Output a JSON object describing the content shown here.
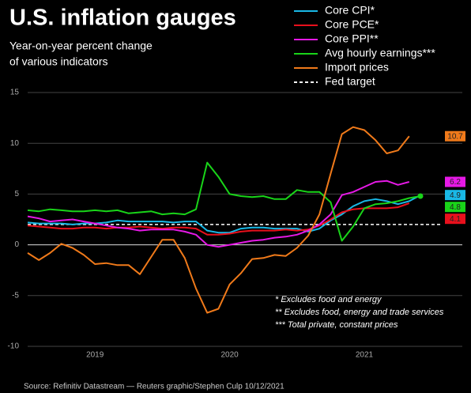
{
  "chart_data": {
    "type": "line",
    "title": "U.S. inflation gauges",
    "subtitle": [
      "Year-on-year percent change",
      "of various indicators"
    ],
    "categories": [
      null,
      null,
      null,
      null,
      null,
      null,
      "2019",
      null,
      null,
      null,
      null,
      null,
      null,
      null,
      null,
      null,
      null,
      null,
      "2020",
      null,
      null,
      null,
      null,
      null,
      null,
      null,
      null,
      null,
      null,
      null,
      "2021",
      null,
      null,
      null,
      null,
      null
    ],
    "series": [
      {
        "name": "Core CPI*",
        "color": "#19b8e6",
        "values": [
          2.2,
          2.1,
          2.1,
          2.1,
          2.0,
          2.1,
          2.1,
          2.2,
          2.4,
          2.3,
          2.3,
          2.3,
          2.3,
          2.2,
          2.3,
          2.3,
          1.4,
          1.2,
          1.2,
          1.6,
          1.7,
          1.7,
          1.6,
          1.6,
          1.6,
          1.3,
          1.6,
          2.4,
          3.0,
          3.8,
          4.3,
          4.5,
          4.3,
          4.0,
          4.3,
          4.9
        ]
      },
      {
        "name": "Core PCE*",
        "color": "#e8101c",
        "values": [
          1.9,
          1.8,
          1.7,
          1.6,
          1.6,
          1.7,
          1.7,
          1.6,
          1.7,
          1.7,
          1.8,
          1.7,
          1.6,
          1.7,
          1.7,
          1.6,
          1.0,
          1.0,
          1.1,
          1.3,
          1.4,
          1.4,
          1.4,
          1.5,
          1.4,
          1.5,
          1.9,
          2.5,
          3.2,
          3.5,
          3.6,
          3.6,
          3.6,
          3.7,
          4.1,
          null
        ]
      },
      {
        "name": "Core PPI**",
        "color": "#e619e6",
        "values": [
          2.8,
          2.6,
          2.3,
          2.4,
          2.5,
          2.3,
          2.1,
          1.9,
          1.7,
          1.6,
          1.4,
          1.5,
          1.5,
          1.5,
          1.3,
          1.0,
          0.0,
          -0.2,
          0.0,
          0.2,
          0.4,
          0.5,
          0.7,
          0.8,
          1.0,
          1.4,
          2.0,
          3.0,
          4.9,
          5.2,
          5.7,
          6.2,
          6.3,
          5.9,
          6.2,
          null
        ]
      },
      {
        "name": "Avg hourly earnings***",
        "color": "#19d419",
        "values": [
          3.4,
          3.3,
          3.5,
          3.4,
          3.3,
          3.3,
          3.4,
          3.3,
          3.4,
          3.1,
          3.2,
          3.3,
          3.0,
          3.1,
          3.0,
          3.5,
          8.1,
          6.7,
          5.0,
          4.8,
          4.7,
          4.8,
          4.5,
          4.5,
          5.4,
          5.2,
          5.2,
          4.2,
          0.4,
          1.8,
          3.6,
          4.0,
          4.1,
          4.3,
          4.6,
          4.8
        ]
      },
      {
        "name": "Import prices",
        "color": "#f07a1a",
        "values": [
          -0.8,
          -1.5,
          -0.8,
          0.1,
          -0.3,
          -1.0,
          -1.9,
          -1.8,
          -2.0,
          -2.0,
          -2.9,
          -1.2,
          0.5,
          0.5,
          -1.3,
          -4.3,
          -6.7,
          -6.3,
          -3.9,
          -2.8,
          -1.4,
          -1.3,
          -1.0,
          -1.1,
          -0.3,
          0.9,
          3.0,
          7.0,
          10.9,
          11.6,
          11.3,
          10.3,
          9.0,
          9.3,
          10.7,
          null
        ]
      }
    ],
    "fed_target": {
      "name": "Fed target",
      "value": 2,
      "color": "#ffffff"
    },
    "ylim": [
      -10,
      15
    ],
    "yticks": [
      -10,
      -5,
      0,
      5,
      10,
      15
    ],
    "grid": true,
    "annotations": [
      "* Excludes food and energy",
      "** Excludes food, energy and trade services",
      "*** Total private, constant prices"
    ],
    "source": "Source: Refinitiv Datastream — Reuters graphic/Stephen Culp 10/12/2021"
  }
}
